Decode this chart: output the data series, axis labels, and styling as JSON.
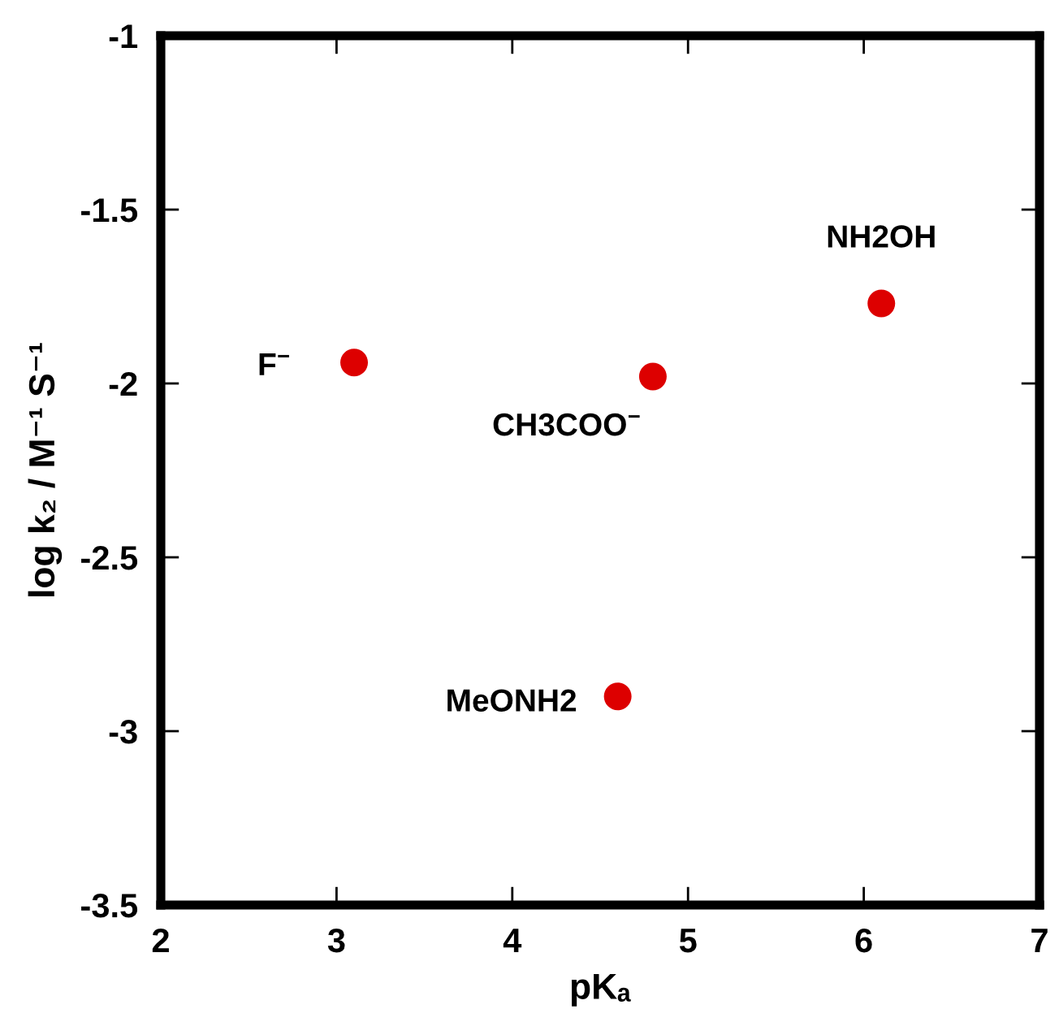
{
  "chart_data": {
    "type": "scatter",
    "x": [
      3.1,
      4.8,
      6.1,
      4.6
    ],
    "values": [
      -1.94,
      -1.98,
      -1.77,
      -2.9
    ],
    "color": "#dd0000",
    "marker": "circle",
    "xlabel": "pKₐ",
    "ylabel": "log k₂ / M⁻¹ S⁻¹",
    "xlim": [
      2,
      7
    ],
    "ylim": [
      -3.5,
      -1
    ],
    "xticks": [
      2,
      3,
      4,
      5,
      6,
      7
    ],
    "yticks": [
      -3.5,
      -3,
      -2.5,
      -2,
      -1.5,
      -1
    ],
    "grid": false,
    "annotations": [
      {
        "text": "F$^{−}$",
        "x": 3.1,
        "y": -1.94
      },
      {
        "text": "CH3COO$^{−}$",
        "x": 4.8,
        "y": -1.98
      },
      {
        "text": "NH2OH",
        "x": 6.1,
        "y": -1.77
      },
      {
        "text": "MeONH2",
        "x": 4.6,
        "y": -2.9
      }
    ]
  }
}
